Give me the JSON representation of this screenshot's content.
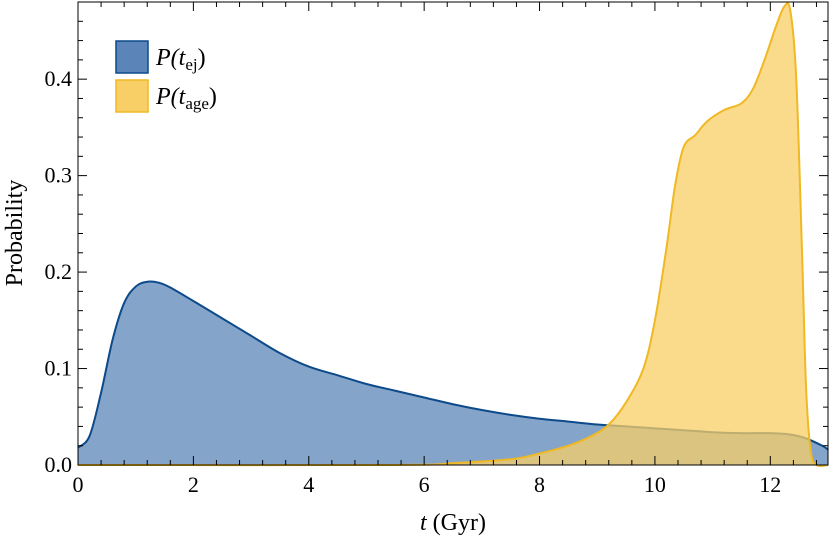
{
  "chart_data": {
    "type": "area",
    "xlabel": "t (Gyr)",
    "xlabel_main": "t",
    "xlabel_unit": " (Gyr)",
    "ylabel": "Probability",
    "xlim": [
      0,
      13
    ],
    "ylim": [
      0,
      0.48
    ],
    "x_ticks": [
      0,
      2,
      4,
      6,
      8,
      10,
      12
    ],
    "x_tick_labels": [
      "0",
      "2",
      "4",
      "6",
      "8",
      "10",
      "12"
    ],
    "y_ticks": [
      0.0,
      0.1,
      0.2,
      0.3,
      0.4
    ],
    "y_tick_labels": [
      "0.0",
      "0.1",
      "0.2",
      "0.3",
      "0.4"
    ],
    "grid": false,
    "legend_position": "top-left",
    "series": [
      {
        "name": "P(t_ej)",
        "legend_main": "P(t",
        "legend_sub": "ej",
        "legend_close": ")",
        "fill": "#5b85b8",
        "stroke": "#0c4a8a",
        "points": [
          [
            0,
            0.018
          ],
          [
            0.2,
            0.03
          ],
          [
            0.4,
            0.075
          ],
          [
            0.6,
            0.13
          ],
          [
            0.8,
            0.168
          ],
          [
            1.0,
            0.185
          ],
          [
            1.2,
            0.19
          ],
          [
            1.4,
            0.189
          ],
          [
            1.6,
            0.184
          ],
          [
            2.0,
            0.17
          ],
          [
            2.5,
            0.152
          ],
          [
            3.0,
            0.134
          ],
          [
            3.5,
            0.116
          ],
          [
            4.0,
            0.102
          ],
          [
            4.5,
            0.093
          ],
          [
            5.0,
            0.084
          ],
          [
            5.5,
            0.077
          ],
          [
            6.0,
            0.07
          ],
          [
            6.5,
            0.063
          ],
          [
            7.0,
            0.057
          ],
          [
            7.5,
            0.052
          ],
          [
            8.0,
            0.048
          ],
          [
            8.5,
            0.045
          ],
          [
            9.0,
            0.042
          ],
          [
            9.5,
            0.04
          ],
          [
            10.0,
            0.038
          ],
          [
            10.5,
            0.036
          ],
          [
            11.0,
            0.034
          ],
          [
            11.5,
            0.033
          ],
          [
            12.0,
            0.033
          ],
          [
            12.3,
            0.032
          ],
          [
            12.6,
            0.028
          ],
          [
            12.9,
            0.02
          ],
          [
            13.0,
            0.016
          ]
        ]
      },
      {
        "name": "P(t_age)",
        "legend_main": "P(t",
        "legend_sub": "age",
        "legend_close": ")",
        "fill": "#f8cf66",
        "stroke": "#f0b823",
        "points": [
          [
            0,
            0.0
          ],
          [
            5.5,
            0.0
          ],
          [
            6.5,
            0.002
          ],
          [
            7.5,
            0.006
          ],
          [
            8.0,
            0.012
          ],
          [
            8.5,
            0.02
          ],
          [
            8.9,
            0.03
          ],
          [
            9.2,
            0.042
          ],
          [
            9.5,
            0.065
          ],
          [
            9.8,
            0.1
          ],
          [
            10.0,
            0.15
          ],
          [
            10.2,
            0.225
          ],
          [
            10.35,
            0.29
          ],
          [
            10.5,
            0.33
          ],
          [
            10.7,
            0.342
          ],
          [
            10.9,
            0.356
          ],
          [
            11.2,
            0.368
          ],
          [
            11.5,
            0.375
          ],
          [
            11.7,
            0.39
          ],
          [
            11.9,
            0.42
          ],
          [
            12.1,
            0.455
          ],
          [
            12.25,
            0.476
          ],
          [
            12.35,
            0.47
          ],
          [
            12.45,
            0.4
          ],
          [
            12.55,
            0.22
          ],
          [
            12.62,
            0.08
          ],
          [
            12.7,
            0.015
          ],
          [
            12.8,
            0.0
          ],
          [
            13.0,
            0.0
          ]
        ]
      }
    ]
  }
}
